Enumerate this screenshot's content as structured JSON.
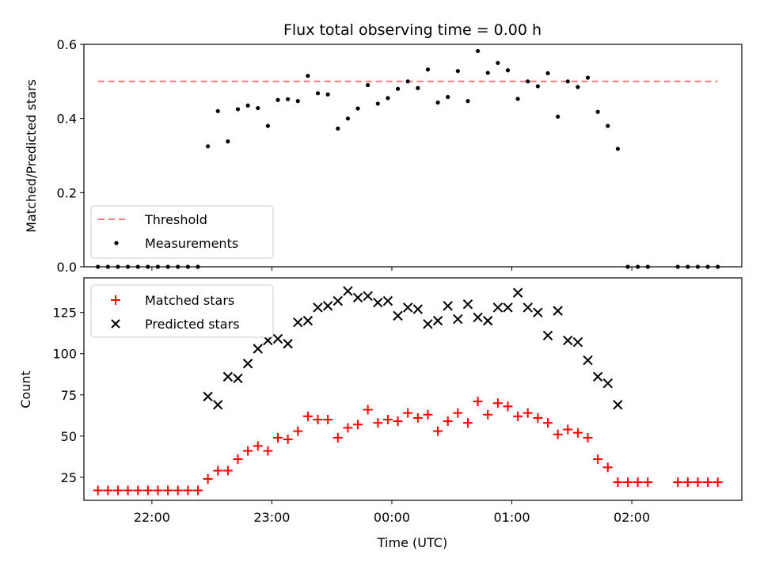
{
  "figure": {
    "title": "Flux total observing time = 0.00 h",
    "xlabel": "Time (UTC)"
  },
  "chart_data": [
    {
      "type": "scatter",
      "panel": "top",
      "ylabel": "Matched/Predicted stars",
      "xlim": [
        "21:26",
        "02:55"
      ],
      "ylim": [
        0,
        0.6
      ],
      "yticks": [
        0.0,
        0.2,
        0.4,
        0.6
      ],
      "ytick_labels": [
        "0.0",
        "0.2",
        "0.4",
        "0.6"
      ],
      "legend_position": "lower-left",
      "threshold": {
        "name": "Threshold",
        "value": 0.5,
        "color": "#f47c7c"
      },
      "series": [
        {
          "name": "Measurements",
          "color": "#000000",
          "marker": "dot",
          "points": [
            [
              "21:33",
              0.0
            ],
            [
              "21:38",
              0.0
            ],
            [
              "21:43",
              0.0
            ],
            [
              "21:48",
              0.0
            ],
            [
              "21:53",
              0.0
            ],
            [
              "21:58",
              0.0
            ],
            [
              "22:03",
              0.0
            ],
            [
              "22:08",
              0.0
            ],
            [
              "22:13",
              0.0
            ],
            [
              "22:18",
              0.0
            ],
            [
              "22:23",
              0.0
            ],
            [
              "22:28",
              0.325
            ],
            [
              "22:33",
              0.42
            ],
            [
              "22:38",
              0.338
            ],
            [
              "22:43",
              0.425
            ],
            [
              "22:48",
              0.435
            ],
            [
              "22:53",
              0.428
            ],
            [
              "22:58",
              0.38
            ],
            [
              "23:03",
              0.45
            ],
            [
              "23:08",
              0.452
            ],
            [
              "23:13",
              0.447
            ],
            [
              "23:18",
              0.515
            ],
            [
              "23:23",
              0.468
            ],
            [
              "23:28",
              0.465
            ],
            [
              "23:33",
              0.373
            ],
            [
              "23:38",
              0.4
            ],
            [
              "23:43",
              0.427
            ],
            [
              "23:48",
              0.49
            ],
            [
              "23:53",
              0.44
            ],
            [
              "23:58",
              0.455
            ],
            [
              "00:03",
              0.48
            ],
            [
              "00:08",
              0.5
            ],
            [
              "00:13",
              0.482
            ],
            [
              "00:18",
              0.532
            ],
            [
              "00:23",
              0.443
            ],
            [
              "00:28",
              0.458
            ],
            [
              "00:33",
              0.528
            ],
            [
              "00:38",
              0.447
            ],
            [
              "00:43",
              0.582
            ],
            [
              "00:48",
              0.523
            ],
            [
              "00:53",
              0.55
            ],
            [
              "00:58",
              0.53
            ],
            [
              "01:03",
              0.453
            ],
            [
              "01:08",
              0.5
            ],
            [
              "01:13",
              0.487
            ],
            [
              "01:18",
              0.522
            ],
            [
              "01:23",
              0.405
            ],
            [
              "01:28",
              0.5
            ],
            [
              "01:33",
              0.485
            ],
            [
              "01:38",
              0.51
            ],
            [
              "01:43",
              0.418
            ],
            [
              "01:48",
              0.38
            ],
            [
              "01:53",
              0.318
            ],
            [
              "01:58",
              0.0
            ],
            [
              "02:03",
              0.0
            ],
            [
              "02:08",
              0.0
            ],
            [
              "02:23",
              0.0
            ],
            [
              "02:28",
              0.0
            ],
            [
              "02:33",
              0.0
            ],
            [
              "02:38",
              0.0
            ],
            [
              "02:43",
              0.0
            ]
          ]
        }
      ]
    },
    {
      "type": "scatter",
      "panel": "bottom",
      "ylabel": "Count",
      "xlim": [
        "21:26",
        "02:55"
      ],
      "ylim": [
        11,
        146
      ],
      "yticks": [
        25,
        50,
        75,
        100,
        125
      ],
      "ytick_labels": [
        "25",
        "50",
        "75",
        "100",
        "125"
      ],
      "xticks": [
        "22:00",
        "23:00",
        "00:00",
        "01:00",
        "02:00"
      ],
      "xtick_labels": [
        "22:00",
        "23:00",
        "00:00",
        "01:00",
        "02:00"
      ],
      "legend_position": "upper-left",
      "series": [
        {
          "name": "Matched stars",
          "color": "#ff0000",
          "marker": "plus",
          "points": [
            [
              "21:33",
              17
            ],
            [
              "21:38",
              17
            ],
            [
              "21:43",
              17
            ],
            [
              "21:48",
              17
            ],
            [
              "21:53",
              17
            ],
            [
              "21:58",
              17
            ],
            [
              "22:03",
              17
            ],
            [
              "22:08",
              17
            ],
            [
              "22:13",
              17
            ],
            [
              "22:18",
              17
            ],
            [
              "22:23",
              17
            ],
            [
              "22:28",
              24
            ],
            [
              "22:33",
              29
            ],
            [
              "22:38",
              29
            ],
            [
              "22:43",
              36
            ],
            [
              "22:48",
              41
            ],
            [
              "22:53",
              44
            ],
            [
              "22:58",
              41
            ],
            [
              "23:03",
              49
            ],
            [
              "23:08",
              48
            ],
            [
              "23:13",
              53
            ],
            [
              "23:18",
              62
            ],
            [
              "23:23",
              60
            ],
            [
              "23:28",
              60
            ],
            [
              "23:33",
              49
            ],
            [
              "23:38",
              55
            ],
            [
              "23:43",
              57
            ],
            [
              "23:48",
              66
            ],
            [
              "23:53",
              58
            ],
            [
              "23:58",
              60
            ],
            [
              "00:03",
              59
            ],
            [
              "00:08",
              64
            ],
            [
              "00:13",
              61
            ],
            [
              "00:18",
              63
            ],
            [
              "00:23",
              53
            ],
            [
              "00:28",
              59
            ],
            [
              "00:33",
              64
            ],
            [
              "00:38",
              58
            ],
            [
              "00:43",
              71
            ],
            [
              "00:48",
              63
            ],
            [
              "00:53",
              70
            ],
            [
              "00:58",
              68
            ],
            [
              "01:03",
              62
            ],
            [
              "01:08",
              64
            ],
            [
              "01:13",
              61
            ],
            [
              "01:18",
              58
            ],
            [
              "01:23",
              51
            ],
            [
              "01:28",
              54
            ],
            [
              "01:33",
              52
            ],
            [
              "01:38",
              49
            ],
            [
              "01:43",
              36
            ],
            [
              "01:48",
              31
            ],
            [
              "01:53",
              22
            ],
            [
              "01:58",
              22
            ],
            [
              "02:03",
              22
            ],
            [
              "02:08",
              22
            ],
            [
              "02:23",
              22
            ],
            [
              "02:28",
              22
            ],
            [
              "02:33",
              22
            ],
            [
              "02:38",
              22
            ],
            [
              "02:43",
              22
            ]
          ]
        },
        {
          "name": "Predicted stars",
          "color": "#000000",
          "marker": "x",
          "points": [
            [
              "22:28",
              74
            ],
            [
              "22:33",
              69
            ],
            [
              "22:38",
              86
            ],
            [
              "22:43",
              85
            ],
            [
              "22:48",
              94
            ],
            [
              "22:53",
              103
            ],
            [
              "22:58",
              108
            ],
            [
              "23:03",
              109
            ],
            [
              "23:08",
              106
            ],
            [
              "23:13",
              119
            ],
            [
              "23:18",
              120
            ],
            [
              "23:23",
              128
            ],
            [
              "23:28",
              129
            ],
            [
              "23:33",
              132
            ],
            [
              "23:38",
              138
            ],
            [
              "23:43",
              134
            ],
            [
              "23:48",
              135
            ],
            [
              "23:53",
              131
            ],
            [
              "23:58",
              132
            ],
            [
              "00:03",
              123
            ],
            [
              "00:08",
              128
            ],
            [
              "00:13",
              127
            ],
            [
              "00:18",
              118
            ],
            [
              "00:23",
              120
            ],
            [
              "00:28",
              129
            ],
            [
              "00:33",
              121
            ],
            [
              "00:38",
              130
            ],
            [
              "00:43",
              122
            ],
            [
              "00:48",
              120
            ],
            [
              "00:53",
              128
            ],
            [
              "00:58",
              128
            ],
            [
              "01:03",
              137
            ],
            [
              "01:08",
              128
            ],
            [
              "01:13",
              125
            ],
            [
              "01:18",
              111
            ],
            [
              "01:23",
              126
            ],
            [
              "01:28",
              108
            ],
            [
              "01:33",
              107
            ],
            [
              "01:38",
              96
            ],
            [
              "01:43",
              86
            ],
            [
              "01:48",
              82
            ],
            [
              "01:53",
              69
            ]
          ]
        }
      ]
    }
  ]
}
